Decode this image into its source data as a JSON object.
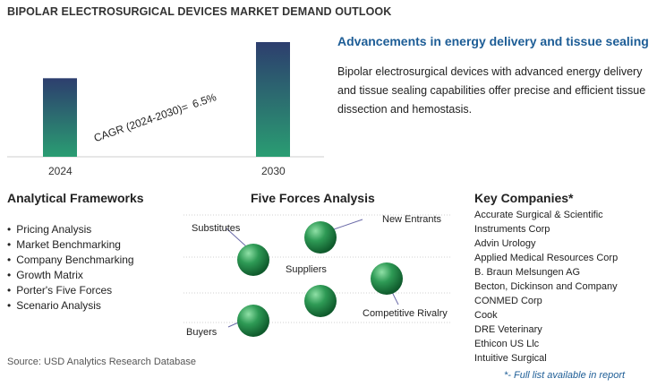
{
  "header": {
    "title": "BIPOLAR ELECTROSURGICAL DEVICES MARKET DEMAND OUTLOOK"
  },
  "chart_data": {
    "type": "bar",
    "categories": [
      "2024",
      "2030"
    ],
    "values": [
      1,
      1.46
    ],
    "annotation": {
      "label": "CAGR (2024-2030)=",
      "value": "6.5%"
    },
    "colors": {
      "bar_top": "#2d3e6e",
      "bar_bottom": "#2a9d72",
      "axis": "#cfcfcf"
    }
  },
  "advancement": {
    "heading": "Advancements in energy delivery and tissue sealing",
    "body": "Bipolar electrosurgical devices with advanced energy delivery and tissue sealing capabilities offer precise and efficient tissue dissection and hemostasis."
  },
  "frameworks": {
    "heading": "Analytical Frameworks",
    "items": [
      "Pricing Analysis",
      "Market Benchmarking",
      "Company Benchmarking",
      "Growth Matrix",
      "Porter's Five Forces",
      "Scenario Analysis"
    ]
  },
  "five_forces": {
    "heading": "Five Forces Analysis",
    "labels": {
      "substitutes": "Substitutes",
      "new_entrants": "New Entrants",
      "suppliers": "Suppliers",
      "competitive_rivalry": "Competitive Rivalry",
      "buyers": "Buyers"
    },
    "colors": {
      "sphere_light": "#8fe0a6",
      "sphere_mid": "#2e9a55",
      "sphere_dark": "#0f5a2c",
      "line": "#6a6aa8"
    }
  },
  "companies": {
    "heading": "Key Companies*",
    "items": [
      "Accurate Surgical & Scientific",
      "Instruments Corp",
      "Advin Urology",
      "Applied Medical Resources Corp",
      "B. Braun Melsungen AG",
      "Becton, Dickinson and Company",
      "CONMED Corp",
      "Cook",
      "DRE Veterinary",
      "Ethicon US Llc",
      "Intuitive Surgical"
    ],
    "note": "*- Full list available in report"
  },
  "source": "Source: USD Analytics Research Database"
}
